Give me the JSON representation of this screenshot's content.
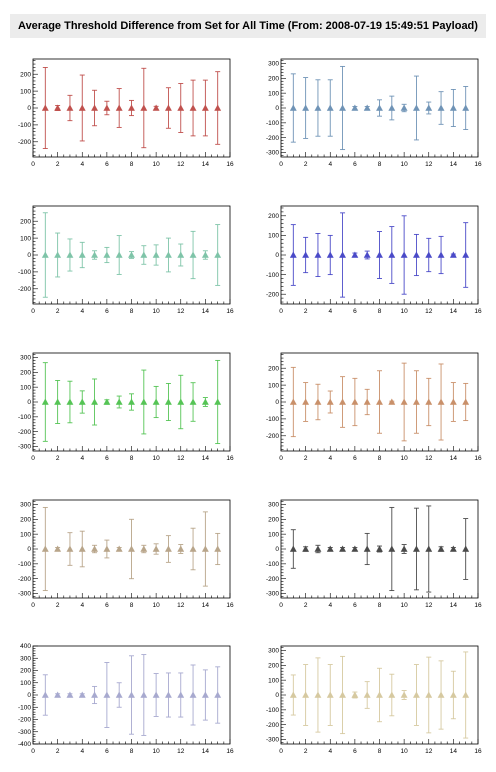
{
  "title": "Average Threshold Difference from Set for All Time (From: 2008-07-19 15:49:51 Payload)",
  "chart_data": [
    {
      "type": "scatter",
      "error_bars": true,
      "marker": "triangle",
      "color": "#c0504d",
      "x": [
        1,
        2,
        3,
        4,
        5,
        6,
        7,
        8,
        9,
        10,
        11,
        12,
        13,
        14,
        15
      ],
      "y": [
        0,
        0,
        0,
        0,
        0,
        0,
        0,
        0,
        0,
        0,
        0,
        0,
        0,
        0,
        0
      ],
      "yerr": [
        240,
        15,
        75,
        195,
        105,
        40,
        115,
        45,
        235,
        10,
        120,
        145,
        165,
        165,
        215
      ],
      "xlim": [
        0,
        16
      ],
      "ylim": [
        -290,
        290
      ],
      "xticks": [
        0,
        2,
        4,
        6,
        8,
        10,
        12,
        14,
        16
      ],
      "yticks": [
        -200,
        -100,
        0,
        100,
        200
      ]
    },
    {
      "type": "scatter",
      "error_bars": true,
      "marker": "triangle",
      "color": "#6f93b6",
      "x": [
        1,
        2,
        3,
        4,
        5,
        6,
        7,
        8,
        9,
        10,
        11,
        12,
        13,
        14,
        15
      ],
      "y": [
        0,
        0,
        0,
        0,
        0,
        0,
        0,
        0,
        0,
        0,
        0,
        0,
        0,
        0,
        0
      ],
      "yerr": [
        230,
        205,
        190,
        190,
        280,
        10,
        10,
        55,
        80,
        25,
        215,
        40,
        110,
        125,
        145
      ],
      "xlim": [
        0,
        16
      ],
      "ylim": [
        -330,
        330
      ],
      "xticks": [
        0,
        2,
        4,
        6,
        8,
        10,
        12,
        14,
        16
      ],
      "yticks": [
        -300,
        -200,
        -100,
        0,
        100,
        200,
        300
      ]
    },
    {
      "type": "scatter",
      "error_bars": true,
      "marker": "triangle",
      "color": "#7ec4a8",
      "x": [
        1,
        2,
        3,
        4,
        5,
        6,
        7,
        8,
        9,
        10,
        11,
        12,
        13,
        14,
        15
      ],
      "y": [
        0,
        0,
        0,
        0,
        0,
        0,
        0,
        0,
        0,
        0,
        0,
        0,
        0,
        0,
        0
      ],
      "yerr": [
        250,
        130,
        95,
        75,
        25,
        45,
        115,
        20,
        55,
        60,
        100,
        65,
        140,
        25,
        180
      ],
      "xlim": [
        0,
        16
      ],
      "ylim": [
        -290,
        290
      ],
      "xticks": [
        0,
        2,
        4,
        6,
        8,
        10,
        12,
        14,
        16
      ],
      "yticks": [
        -200,
        -100,
        0,
        100,
        200
      ]
    },
    {
      "type": "scatter",
      "error_bars": true,
      "marker": "triangle",
      "color": "#4a4ac8",
      "x": [
        1,
        2,
        3,
        4,
        5,
        6,
        7,
        8,
        9,
        10,
        11,
        12,
        13,
        14,
        15
      ],
      "y": [
        0,
        0,
        0,
        0,
        0,
        0,
        0,
        0,
        0,
        0,
        0,
        0,
        0,
        0,
        0
      ],
      "yerr": [
        155,
        90,
        110,
        100,
        215,
        10,
        20,
        120,
        145,
        200,
        105,
        85,
        95,
        5,
        165
      ],
      "xlim": [
        0,
        16
      ],
      "ylim": [
        -250,
        250
      ],
      "xticks": [
        0,
        2,
        4,
        6,
        8,
        10,
        12,
        14,
        16
      ],
      "yticks": [
        -200,
        -100,
        0,
        100,
        200
      ]
    },
    {
      "type": "scatter",
      "error_bars": true,
      "marker": "triangle",
      "color": "#55c455",
      "x": [
        1,
        2,
        3,
        4,
        5,
        6,
        7,
        8,
        9,
        10,
        11,
        12,
        13,
        14,
        15
      ],
      "y": [
        0,
        0,
        0,
        0,
        0,
        0,
        0,
        0,
        0,
        0,
        0,
        0,
        0,
        0,
        0
      ],
      "yerr": [
        265,
        145,
        140,
        75,
        155,
        15,
        40,
        55,
        215,
        105,
        125,
        180,
        130,
        30,
        280
      ],
      "xlim": [
        0,
        16
      ],
      "ylim": [
        -330,
        330
      ],
      "xticks": [
        0,
        2,
        4,
        6,
        8,
        10,
        12,
        14,
        16
      ],
      "yticks": [
        -300,
        -200,
        -100,
        0,
        100,
        200,
        300
      ]
    },
    {
      "type": "scatter",
      "error_bars": true,
      "marker": "triangle",
      "color": "#c9906a",
      "x": [
        1,
        2,
        3,
        4,
        5,
        6,
        7,
        8,
        9,
        10,
        11,
        12,
        13,
        14,
        15
      ],
      "y": [
        0,
        0,
        0,
        0,
        0,
        0,
        0,
        0,
        0,
        0,
        0,
        0,
        0,
        0,
        0
      ],
      "yerr": [
        205,
        115,
        105,
        65,
        150,
        140,
        75,
        185,
        5,
        230,
        185,
        140,
        225,
        115,
        110
      ],
      "xlim": [
        0,
        16
      ],
      "ylim": [
        -290,
        290
      ],
      "xticks": [
        0,
        2,
        4,
        6,
        8,
        10,
        12,
        14,
        16
      ],
      "yticks": [
        -200,
        -100,
        0,
        100,
        200
      ]
    },
    {
      "type": "scatter",
      "error_bars": true,
      "marker": "triangle",
      "color": "#b8a58a",
      "x": [
        1,
        2,
        3,
        4,
        5,
        6,
        7,
        8,
        9,
        10,
        11,
        12,
        13,
        14,
        15
      ],
      "y": [
        0,
        0,
        0,
        0,
        0,
        0,
        0,
        0,
        0,
        0,
        0,
        0,
        0,
        0,
        0
      ],
      "yerr": [
        280,
        10,
        110,
        120,
        25,
        60,
        10,
        200,
        25,
        35,
        90,
        30,
        140,
        250,
        105
      ],
      "xlim": [
        0,
        16
      ],
      "ylim": [
        -330,
        330
      ],
      "xticks": [
        0,
        2,
        4,
        6,
        8,
        10,
        12,
        14,
        16
      ],
      "yticks": [
        -300,
        -200,
        -100,
        0,
        100,
        200,
        300
      ]
    },
    {
      "type": "scatter",
      "error_bars": true,
      "marker": "triangle",
      "color": "#4a4a4a",
      "x": [
        1,
        2,
        3,
        4,
        5,
        6,
        7,
        8,
        9,
        10,
        11,
        12,
        13,
        14,
        15
      ],
      "y": [
        0,
        0,
        0,
        0,
        0,
        0,
        0,
        0,
        0,
        0,
        0,
        0,
        0,
        0,
        0
      ],
      "yerr": [
        130,
        15,
        25,
        10,
        10,
        10,
        105,
        20,
        280,
        30,
        275,
        290,
        15,
        10,
        205
      ],
      "xlim": [
        0,
        16
      ],
      "ylim": [
        -330,
        330
      ],
      "xticks": [
        0,
        2,
        4,
        6,
        8,
        10,
        12,
        14,
        16
      ],
      "yticks": [
        -300,
        -200,
        -100,
        0,
        100,
        200,
        300
      ]
    },
    {
      "type": "scatter",
      "error_bars": true,
      "marker": "triangle",
      "color": "#a7a9cf",
      "x": [
        1,
        2,
        3,
        4,
        5,
        6,
        7,
        8,
        9,
        10,
        11,
        12,
        13,
        14,
        15
      ],
      "y": [
        0,
        0,
        0,
        0,
        0,
        0,
        0,
        0,
        0,
        0,
        0,
        0,
        0,
        0,
        0
      ],
      "yerr": [
        165,
        10,
        10,
        10,
        70,
        265,
        100,
        320,
        330,
        175,
        180,
        180,
        245,
        205,
        230
      ],
      "xlim": [
        0,
        16
      ],
      "ylim": [
        -400,
        400
      ],
      "xticks": [
        0,
        2,
        4,
        6,
        8,
        10,
        12,
        14,
        16
      ],
      "yticks": [
        -400,
        -300,
        -200,
        -100,
        0,
        100,
        200,
        300,
        400
      ]
    },
    {
      "type": "scatter",
      "error_bars": true,
      "marker": "triangle",
      "color": "#d6c9a0",
      "x": [
        1,
        2,
        3,
        4,
        5,
        6,
        7,
        8,
        9,
        10,
        11,
        12,
        13,
        14,
        15
      ],
      "y": [
        0,
        0,
        0,
        0,
        0,
        0,
        0,
        0,
        0,
        0,
        0,
        0,
        0,
        0,
        0
      ],
      "yerr": [
        135,
        205,
        250,
        205,
        260,
        20,
        90,
        180,
        140,
        30,
        205,
        255,
        230,
        160,
        290
      ],
      "xlim": [
        0,
        16
      ],
      "ylim": [
        -330,
        330
      ],
      "xticks": [
        0,
        2,
        4,
        6,
        8,
        10,
        12,
        14,
        16
      ],
      "yticks": [
        -300,
        -200,
        -100,
        0,
        100,
        200,
        300
      ]
    }
  ]
}
